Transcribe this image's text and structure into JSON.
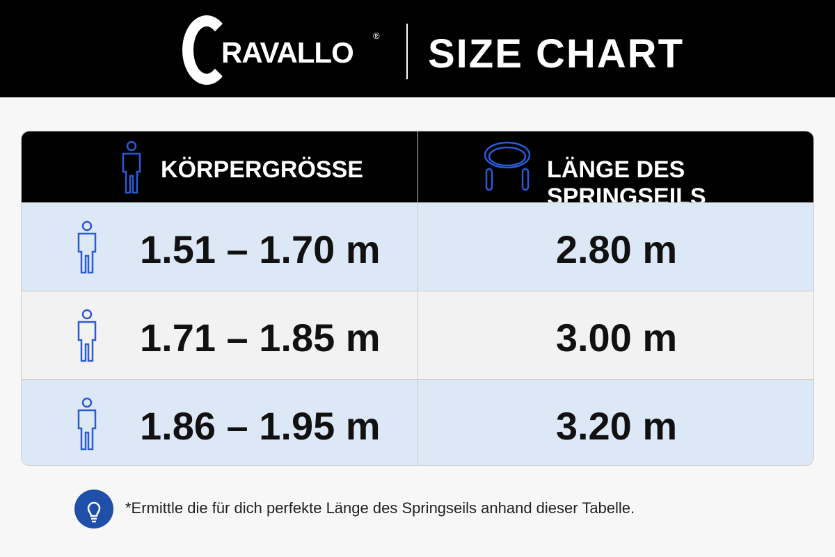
{
  "header": {
    "logo_initial": "C",
    "logo_rest": "RAVALLO",
    "trademark": "®",
    "title": "SIZE CHART"
  },
  "table": {
    "headers": [
      "KÖRPERGRÖSSE",
      "LÄNGE DES SPRINGSEILS"
    ],
    "rows": [
      [
        "1.51 – 1.70 m",
        "2.80 m"
      ],
      [
        "1.71 – 1.85 m",
        "3.00 m"
      ],
      [
        "1.86 – 1.95 m",
        "3.20 m"
      ]
    ]
  },
  "footnote": "*Ermittle die für dich perfekte Länge des Springseils anhand dieser Tabelle."
}
